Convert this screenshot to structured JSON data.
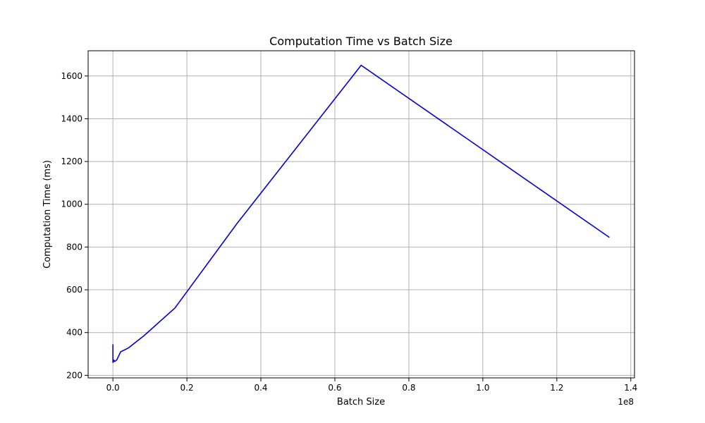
{
  "chart_data": {
    "type": "line",
    "title": "Computation Time vs Batch Size",
    "xlabel": "Batch Size",
    "ylabel": "Computation Time (ms)",
    "x_offset_label": "1e8",
    "xlim": [
      -6700000,
      141000000
    ],
    "ylim": [
      188,
      1718
    ],
    "xticks": [
      0,
      20000000,
      40000000,
      60000000,
      80000000,
      100000000,
      120000000,
      140000000
    ],
    "xtick_labels": [
      "0.0",
      "0.2",
      "0.4",
      "0.6",
      "0.8",
      "1.0",
      "1.2",
      "1.4"
    ],
    "yticks": [
      200,
      400,
      600,
      800,
      1000,
      1200,
      1400,
      1600
    ],
    "ytick_labels": [
      "200",
      "400",
      "600",
      "800",
      "1000",
      "1200",
      "1400",
      "1600"
    ],
    "grid": true,
    "series": [
      {
        "color": "#0000dd",
        "x": [
          1,
          2,
          4,
          8,
          16,
          32,
          64,
          128,
          256,
          512,
          1024,
          2048,
          4096,
          8192,
          16384,
          32768,
          65536,
          131072,
          262144,
          524288,
          1048576,
          2097152,
          4194304,
          8388608,
          16777216,
          33554432,
          67108864,
          134217728
        ],
        "y": [
          340,
          300,
          280,
          345,
          260,
          300,
          290,
          275,
          262,
          270,
          266,
          268,
          272,
          258,
          262,
          268,
          275,
          262,
          270,
          265,
          272,
          310,
          328,
          385,
          515,
          910,
          1650,
          845
        ]
      }
    ]
  }
}
